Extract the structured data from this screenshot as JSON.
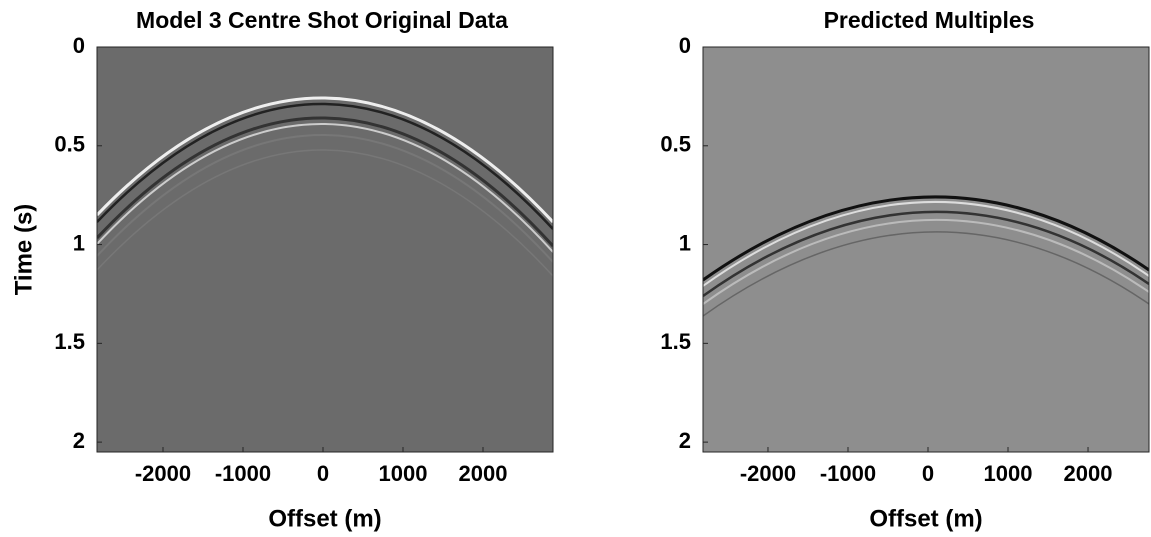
{
  "chart_data": [
    {
      "type": "image",
      "title": "Model 3 Centre Shot Original Data",
      "xlabel": "Offset (m)",
      "ylabel": "Time (s)",
      "xlim": [
        -2825,
        2875
      ],
      "ylim": [
        0,
        2.05
      ],
      "y_reversed": true,
      "xticks": [
        -2000,
        -1000,
        0,
        1000,
        2000
      ],
      "yticks": [
        0,
        0.5,
        1,
        1.5,
        2
      ],
      "colormap": "gray",
      "background": "#6b6b6b"
    },
    {
      "type": "image",
      "title": "Predicted Multiples",
      "xlabel": "Offset (m)",
      "xlim": [
        -2812,
        2762
      ],
      "ylim": [
        0,
        2.05
      ],
      "y_reversed": true,
      "xticks": [
        -2000,
        -1000,
        0,
        1000,
        2000
      ],
      "yticks": [
        0,
        0.5,
        1,
        1.5,
        2
      ],
      "colormap": "gray",
      "background": "#8e8e8e"
    }
  ]
}
